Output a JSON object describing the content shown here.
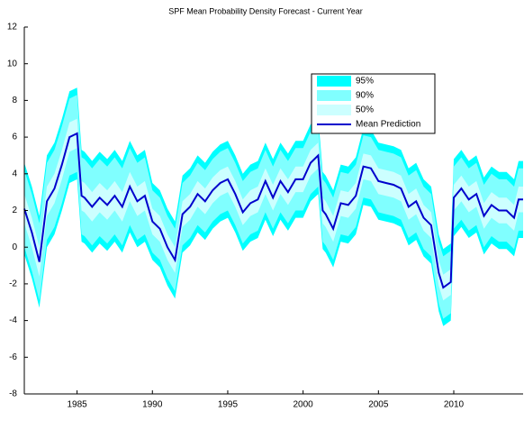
{
  "chart_data": {
    "type": "fan",
    "title": "SPF Mean Probability Density Forecast - Current Year",
    "xlim": [
      1981.5,
      2014.6
    ],
    "xticks": [
      1985,
      1990,
      1995,
      2000,
      2005,
      2010
    ],
    "ylim": [
      -8,
      12
    ],
    "yticks": [
      -8,
      -6,
      -4,
      -2,
      0,
      2,
      4,
      6,
      8,
      10,
      12
    ],
    "x": [
      1981.5,
      1982,
      1982.5,
      1983,
      1983.5,
      1984,
      1984.5,
      1985,
      1985.3,
      1985.5,
      1986,
      1986.5,
      1987,
      1987.5,
      1988,
      1988.5,
      1989,
      1989.5,
      1990,
      1990.5,
      1991,
      1991.5,
      1992,
      1992.5,
      1993,
      1993.5,
      1994,
      1994.5,
      1995,
      1995.5,
      1996,
      1996.5,
      1997,
      1997.5,
      1998,
      1998.5,
      1999,
      1999.5,
      2000,
      2000.5,
      2001,
      2001.3,
      2001.5,
      2002,
      2002.5,
      2003,
      2003.5,
      2004,
      2004.5,
      2005,
      2005.5,
      2006,
      2006.5,
      2007,
      2007.5,
      2008,
      2008.5,
      2009,
      2009.3,
      2009.8,
      2010,
      2010.5,
      2011,
      2011.5,
      2012,
      2012.5,
      2013,
      2013.5,
      2014,
      2014.3,
      2014.6
    ],
    "series": [
      {
        "name": "95%",
        "color": "#00ffff",
        "upper": [
          4.6,
          3.3,
          1.7,
          5.0,
          5.7,
          7.0,
          8.5,
          8.7,
          5.3,
          5.2,
          4.7,
          5.2,
          4.8,
          5.3,
          4.7,
          5.8,
          5.0,
          5.3,
          3.5,
          3.1,
          2.1,
          1.4,
          3.9,
          4.3,
          5.0,
          4.6,
          5.2,
          5.6,
          5.8,
          5.0,
          4.0,
          4.5,
          4.7,
          5.7,
          4.8,
          5.7,
          5.1,
          5.8,
          5.8,
          6.7,
          7.1,
          4.1,
          3.9,
          3.1,
          4.5,
          4.4,
          4.9,
          6.5,
          6.4,
          5.7,
          5.6,
          5.5,
          5.3,
          4.3,
          4.6,
          3.7,
          3.3,
          0.7,
          -0.1,
          0.2,
          4.8,
          5.3,
          4.7,
          5.0,
          3.8,
          4.4,
          4.1,
          4.1,
          3.7,
          4.7,
          4.7
        ],
        "lower": [
          -0.4,
          -1.7,
          -3.3,
          0.0,
          0.7,
          2.0,
          3.5,
          3.7,
          0.3,
          0.2,
          -0.3,
          0.2,
          -0.2,
          0.3,
          -0.3,
          0.8,
          0.0,
          0.3,
          -0.7,
          -1.1,
          -2.1,
          -2.8,
          -0.3,
          0.1,
          0.8,
          0.4,
          1.0,
          1.4,
          1.6,
          0.8,
          -0.2,
          0.3,
          0.5,
          1.5,
          0.6,
          1.5,
          0.9,
          1.6,
          1.6,
          2.5,
          2.9,
          -0.1,
          -0.3,
          -1.1,
          0.3,
          0.2,
          0.7,
          2.3,
          2.2,
          1.5,
          1.4,
          1.3,
          1.1,
          0.1,
          0.4,
          -0.5,
          -0.9,
          -3.5,
          -4.3,
          -4.0,
          0.6,
          1.1,
          0.5,
          0.8,
          -0.4,
          0.2,
          -0.1,
          -0.1,
          -0.5,
          0.5,
          0.5
        ]
      },
      {
        "name": "90%",
        "color": "#80ffff",
        "upper": [
          4.2,
          2.9,
          1.3,
          4.6,
          5.3,
          6.6,
          8.1,
          8.3,
          4.9,
          4.8,
          4.3,
          4.8,
          4.4,
          4.9,
          4.3,
          5.4,
          4.6,
          4.9,
          3.1,
          2.7,
          1.7,
          1.0,
          3.5,
          3.9,
          4.6,
          4.2,
          4.8,
          5.2,
          5.4,
          4.6,
          3.6,
          4.1,
          4.3,
          5.3,
          4.4,
          5.3,
          4.7,
          5.4,
          5.4,
          6.3,
          6.7,
          3.7,
          3.5,
          2.7,
          4.1,
          4.0,
          4.5,
          6.1,
          6.0,
          5.3,
          5.2,
          5.1,
          4.9,
          3.9,
          4.2,
          3.3,
          2.9,
          0.3,
          -0.5,
          -0.2,
          4.4,
          4.9,
          4.3,
          4.6,
          3.4,
          4.0,
          3.7,
          3.7,
          3.3,
          4.3,
          4.3
        ],
        "lower": [
          0.0,
          -1.3,
          -2.9,
          0.4,
          1.1,
          2.4,
          3.9,
          4.1,
          0.7,
          0.6,
          0.1,
          0.6,
          0.2,
          0.7,
          0.1,
          1.2,
          0.4,
          0.7,
          -0.3,
          -0.7,
          -1.7,
          -2.4,
          0.1,
          0.5,
          1.2,
          0.8,
          1.4,
          1.8,
          2.0,
          1.2,
          0.2,
          0.7,
          0.9,
          1.9,
          1.0,
          1.9,
          1.3,
          2.0,
          2.0,
          2.9,
          3.3,
          0.3,
          0.1,
          -0.7,
          0.7,
          0.6,
          1.1,
          2.7,
          2.6,
          1.9,
          1.8,
          1.7,
          1.5,
          0.5,
          0.8,
          -0.1,
          -0.5,
          -3.1,
          -3.9,
          -3.6,
          1.0,
          1.5,
          0.9,
          1.2,
          0.0,
          0.6,
          0.3,
          0.3,
          -0.1,
          0.9,
          0.9
        ]
      },
      {
        "name": "50%",
        "color": "#ccffff",
        "upper": [
          2.9,
          1.6,
          0.0,
          3.3,
          4.0,
          5.3,
          6.8,
          7.0,
          3.6,
          3.5,
          3.0,
          3.5,
          3.1,
          3.6,
          3.0,
          4.1,
          3.3,
          3.6,
          2.1,
          1.7,
          0.7,
          0.0,
          2.5,
          2.9,
          3.6,
          3.2,
          3.8,
          4.2,
          4.4,
          3.6,
          2.6,
          3.1,
          3.3,
          4.3,
          3.4,
          4.3,
          3.7,
          4.4,
          4.4,
          5.3,
          5.7,
          2.7,
          2.5,
          1.7,
          3.1,
          3.0,
          3.5,
          5.1,
          5.0,
          4.3,
          4.2,
          4.1,
          3.9,
          2.9,
          3.2,
          2.3,
          1.9,
          -0.7,
          -1.5,
          -1.2,
          3.4,
          3.9,
          3.3,
          3.6,
          2.4,
          3.0,
          2.7,
          2.7,
          2.3,
          3.3,
          3.3
        ],
        "lower": [
          1.3,
          0.0,
          -1.6,
          1.7,
          2.4,
          3.7,
          5.2,
          5.4,
          2.0,
          1.9,
          1.4,
          1.9,
          1.5,
          2.0,
          1.4,
          2.5,
          1.7,
          2.0,
          0.7,
          0.3,
          -0.7,
          -1.4,
          1.1,
          1.5,
          2.2,
          1.8,
          2.4,
          2.8,
          3.0,
          2.2,
          1.2,
          1.7,
          1.9,
          2.9,
          2.0,
          2.9,
          2.3,
          3.0,
          3.0,
          3.9,
          4.3,
          1.3,
          1.1,
          0.3,
          1.7,
          1.6,
          2.1,
          3.7,
          3.6,
          2.9,
          2.8,
          2.7,
          2.5,
          1.5,
          1.8,
          0.9,
          0.5,
          -2.1,
          -2.9,
          -2.6,
          2.0,
          2.5,
          1.9,
          2.2,
          1.0,
          1.6,
          1.3,
          1.3,
          0.9,
          1.9,
          1.9
        ]
      },
      {
        "name": "Mean Prediction",
        "color": "#0000cc",
        "values": [
          2.1,
          0.8,
          -0.8,
          2.5,
          3.2,
          4.5,
          6.0,
          6.2,
          2.8,
          2.7,
          2.2,
          2.7,
          2.3,
          2.8,
          2.2,
          3.3,
          2.5,
          2.8,
          1.4,
          1.0,
          0.0,
          -0.7,
          1.8,
          2.2,
          2.9,
          2.5,
          3.1,
          3.5,
          3.7,
          2.9,
          1.9,
          2.4,
          2.6,
          3.6,
          2.7,
          3.6,
          3.0,
          3.7,
          3.7,
          4.6,
          5.0,
          2.0,
          1.8,
          1.0,
          2.4,
          2.3,
          2.8,
          4.4,
          4.3,
          3.6,
          3.5,
          3.4,
          3.2,
          2.2,
          2.5,
          1.6,
          1.2,
          -1.4,
          -2.2,
          -1.9,
          2.7,
          3.2,
          2.6,
          2.9,
          1.7,
          2.3,
          2.0,
          2.0,
          1.6,
          2.6,
          2.6
        ]
      }
    ]
  }
}
